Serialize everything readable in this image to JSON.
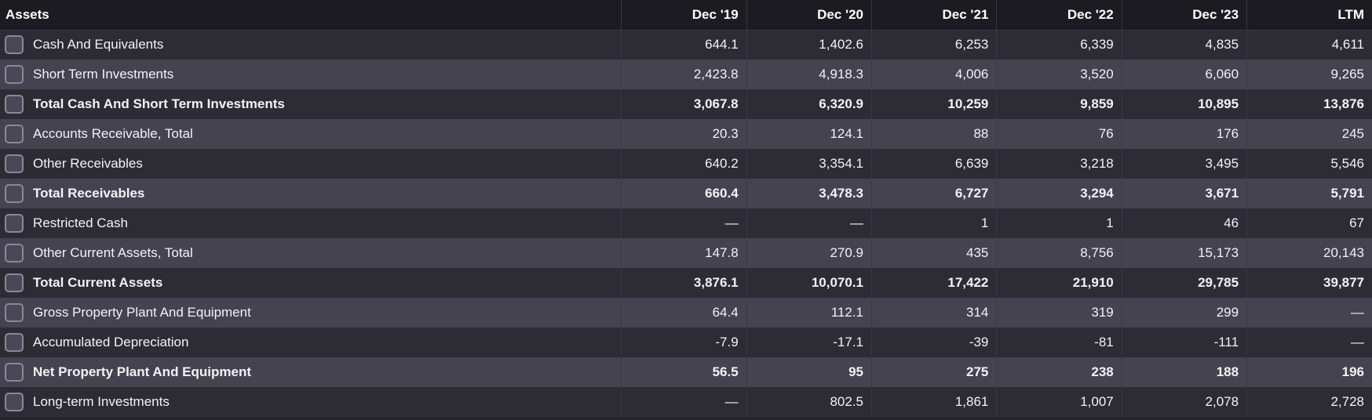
{
  "table": {
    "header": {
      "label": "Assets",
      "periods": [
        "Dec '19",
        "Dec '20",
        "Dec '21",
        "Dec '22",
        "Dec '23",
        "LTM"
      ]
    },
    "rows": [
      {
        "label": "Cash And Equivalents",
        "bold": false,
        "values": [
          "644.1",
          "1,402.6",
          "6,253",
          "6,339",
          "4,835",
          "4,611"
        ]
      },
      {
        "label": "Short Term Investments",
        "bold": false,
        "values": [
          "2,423.8",
          "4,918.3",
          "4,006",
          "3,520",
          "6,060",
          "9,265"
        ]
      },
      {
        "label": "Total Cash And Short Term Investments",
        "bold": true,
        "values": [
          "3,067.8",
          "6,320.9",
          "10,259",
          "9,859",
          "10,895",
          "13,876"
        ]
      },
      {
        "label": "Accounts Receivable, Total",
        "bold": false,
        "values": [
          "20.3",
          "124.1",
          "88",
          "76",
          "176",
          "245"
        ]
      },
      {
        "label": "Other Receivables",
        "bold": false,
        "values": [
          "640.2",
          "3,354.1",
          "6,639",
          "3,218",
          "3,495",
          "5,546"
        ]
      },
      {
        "label": "Total Receivables",
        "bold": true,
        "values": [
          "660.4",
          "3,478.3",
          "6,727",
          "3,294",
          "3,671",
          "5,791"
        ]
      },
      {
        "label": "Restricted Cash",
        "bold": false,
        "values": [
          "—",
          "—",
          "1",
          "1",
          "46",
          "67"
        ]
      },
      {
        "label": "Other Current Assets, Total",
        "bold": false,
        "values": [
          "147.8",
          "270.9",
          "435",
          "8,756",
          "15,173",
          "20,143"
        ]
      },
      {
        "label": "Total Current Assets",
        "bold": true,
        "values": [
          "3,876.1",
          "10,070.1",
          "17,422",
          "21,910",
          "29,785",
          "39,877"
        ]
      },
      {
        "label": "Gross Property Plant And Equipment",
        "bold": false,
        "values": [
          "64.4",
          "112.1",
          "314",
          "319",
          "299",
          "—"
        ]
      },
      {
        "label": "Accumulated Depreciation",
        "bold": false,
        "values": [
          "-7.9",
          "-17.1",
          "-39",
          "-81",
          "-111",
          "—"
        ]
      },
      {
        "label": "Net Property Plant And Equipment",
        "bold": true,
        "values": [
          "56.5",
          "95",
          "275",
          "238",
          "188",
          "196"
        ]
      },
      {
        "label": "Long-term Investments",
        "bold": false,
        "values": [
          "—",
          "802.5",
          "1,861",
          "1,007",
          "2,078",
          "2,728"
        ]
      }
    ]
  }
}
